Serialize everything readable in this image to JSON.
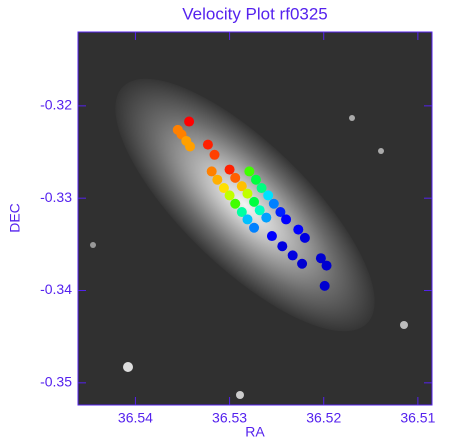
{
  "chart_data": {
    "type": "scatter",
    "title": "Velocity Plot rf0325",
    "x_label": "RA",
    "y_label": "DEC",
    "xlim": [
      36.5461,
      36.5085
    ],
    "ylim": [
      -0.3524,
      -0.312
    ],
    "xticks": [
      36.54,
      36.53,
      36.52,
      36.51
    ],
    "yticks": [
      -0.32,
      -0.33,
      -0.34,
      -0.35
    ],
    "x": [
      36.5355,
      36.5351,
      36.5346,
      36.5342,
      36.5343,
      36.5323,
      36.5316,
      36.5319,
      36.5313,
      36.5306,
      36.53,
      36.5294,
      36.5287,
      36.5281,
      36.5274,
      36.53,
      36.5294,
      36.5287,
      36.5281,
      36.5274,
      36.5268,
      36.5261,
      36.5279,
      36.5272,
      36.5266,
      36.5259,
      36.5253,
      36.5246,
      36.524,
      36.5255,
      36.5244,
      36.5233,
      36.5223,
      36.5227,
      36.522,
      36.5203,
      36.5197,
      36.5199
    ],
    "y": [
      -0.3226,
      -0.3231,
      -0.3238,
      -0.3244,
      -0.3217,
      -0.3242,
      -0.3253,
      -0.3271,
      -0.328,
      -0.3289,
      -0.3297,
      -0.3306,
      -0.3315,
      -0.3323,
      -0.3332,
      -0.3269,
      -0.3278,
      -0.3287,
      -0.3295,
      -0.3304,
      -0.3313,
      -0.3321,
      -0.3271,
      -0.328,
      -0.3289,
      -0.3297,
      -0.3306,
      -0.3315,
      -0.3323,
      -0.3341,
      -0.3352,
      -0.3362,
      -0.3371,
      -0.3334,
      -0.3343,
      -0.3365,
      -0.3373,
      -0.3395
    ],
    "colors": [
      "#ff8000",
      "#ff8000",
      "#ffa000",
      "#ffa000",
      "#ff0000",
      "#ff2000",
      "#ff4000",
      "#ff8000",
      "#ffb000",
      "#ffe000",
      "#c0ff00",
      "#40ff00",
      "#00ffa0",
      "#00c0ff",
      "#0080ff",
      "#ff2000",
      "#ff6000",
      "#ffc000",
      "#c0ff00",
      "#00ff40",
      "#00ffc0",
      "#00a0ff",
      "#40ff00",
      "#00ff40",
      "#00ff80",
      "#00e0ff",
      "#0080ff",
      "#0020ff",
      "#0000ff",
      "#0000ff",
      "#0000e0",
      "#0000e0",
      "#0000d0",
      "#0000ff",
      "#0000e0",
      "#0000d0",
      "#0000d0",
      "#0000d0"
    ]
  }
}
